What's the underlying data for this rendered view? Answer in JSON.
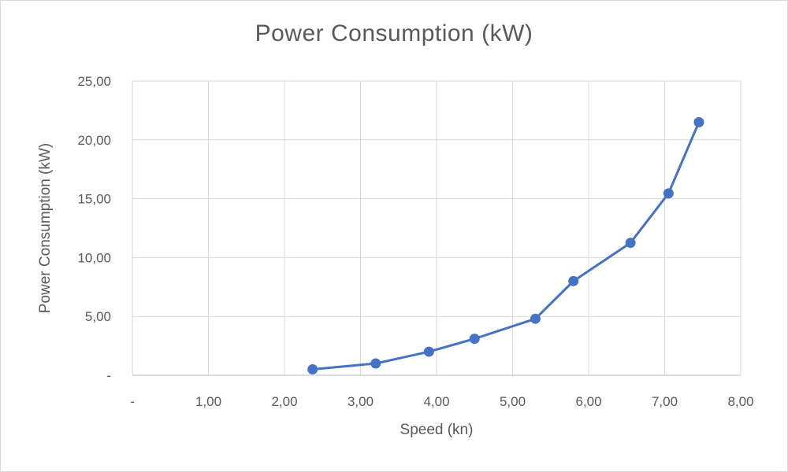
{
  "chart_data": {
    "type": "line",
    "title": "Power Consumption (kW)",
    "xlabel": "Speed (kn)",
    "ylabel": "Power Consumption (kW)",
    "xlim": [
      0,
      8
    ],
    "ylim": [
      0,
      25
    ],
    "x_ticks": [
      {
        "value": 0,
        "label": "-"
      },
      {
        "value": 1,
        "label": "1,00"
      },
      {
        "value": 2,
        "label": "2,00"
      },
      {
        "value": 3,
        "label": "3,00"
      },
      {
        "value": 4,
        "label": "4,00"
      },
      {
        "value": 5,
        "label": "5,00"
      },
      {
        "value": 6,
        "label": "6,00"
      },
      {
        "value": 7,
        "label": "7,00"
      },
      {
        "value": 8,
        "label": "8,00"
      }
    ],
    "y_ticks": [
      {
        "value": 0,
        "label": "-"
      },
      {
        "value": 5,
        "label": "5,00"
      },
      {
        "value": 10,
        "label": "10,00"
      },
      {
        "value": 15,
        "label": "15,00"
      },
      {
        "value": 20,
        "label": "20,00"
      },
      {
        "value": 25,
        "label": "25,00"
      }
    ],
    "grid": true,
    "legend": "none",
    "series": [
      {
        "name": "Power Consumption (kW)",
        "color": "#4472c4",
        "points": [
          {
            "x": 2.37,
            "y": 0.5
          },
          {
            "x": 3.2,
            "y": 1.0
          },
          {
            "x": 3.9,
            "y": 2.0
          },
          {
            "x": 4.5,
            "y": 3.1
          },
          {
            "x": 5.3,
            "y": 4.8
          },
          {
            "x": 5.8,
            "y": 8.0
          },
          {
            "x": 6.55,
            "y": 11.25
          },
          {
            "x": 7.05,
            "y": 15.45
          },
          {
            "x": 7.45,
            "y": 21.5
          }
        ]
      }
    ]
  }
}
